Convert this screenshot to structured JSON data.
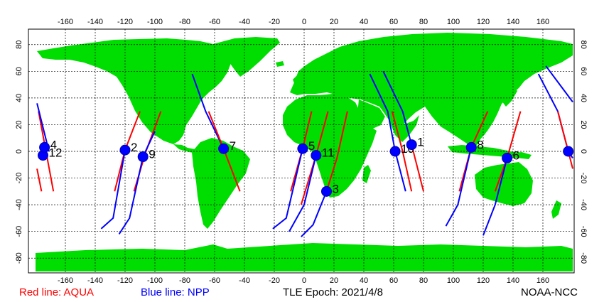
{
  "map": {
    "projection": "equirectangular",
    "lon_range": [
      -180,
      180
    ],
    "lat_range": [
      -90,
      90
    ],
    "lon_ticks": [
      -160,
      -140,
      -120,
      -100,
      -80,
      -60,
      -40,
      -20,
      0,
      20,
      40,
      60,
      80,
      100,
      120,
      140,
      160
    ],
    "lat_ticks": [
      80,
      60,
      40,
      20,
      0,
      -20,
      -40,
      -60,
      -80
    ],
    "grid": true,
    "colors": {
      "land": "#00dd00",
      "ocean": "#ffffff",
      "aqua": "#ff0000",
      "npp": "#0000ff",
      "marker": "#0000ff",
      "grid": "#000000"
    }
  },
  "legend": {
    "aqua": "Red line: AQUA",
    "npp": "Blue line: NPP",
    "epoch": "TLE Epoch: 2021/4/8",
    "credit": "NOAA-NCC"
  },
  "passes": [
    {
      "label": "12",
      "lon": -175,
      "lat": -3,
      "sat": "npp"
    },
    {
      "label": "4",
      "lon": -174,
      "lat": 3,
      "sat": "aqua"
    },
    {
      "label": "2",
      "lon": -120,
      "lat": 1,
      "sat": "aqua"
    },
    {
      "label": "9",
      "lon": -108,
      "lat": -4,
      "sat": "npp"
    },
    {
      "label": "7",
      "lon": -54,
      "lat": 2,
      "sat": "aqua"
    },
    {
      "label": "5",
      "lon": -1,
      "lat": 2,
      "sat": "aqua"
    },
    {
      "label": "11",
      "lon": 8,
      "lat": -3,
      "sat": "npp"
    },
    {
      "label": "3",
      "lon": 15,
      "lat": -30,
      "sat": "npp"
    },
    {
      "label": "10",
      "lon": 61,
      "lat": 0,
      "sat": "npp"
    },
    {
      "label": "1",
      "lon": 72,
      "lat": 5,
      "sat": "aqua"
    },
    {
      "label": "8",
      "lon": 112,
      "lat": 3,
      "sat": "aqua"
    },
    {
      "label": "6",
      "lon": 136,
      "lat": -5,
      "sat": "npp"
    },
    {
      "label": "",
      "lon": 177,
      "lat": 0,
      "sat": "aqua"
    }
  ],
  "tracks": [
    {
      "sat": "aqua",
      "points": [
        [
          -178,
          30
        ],
        [
          -168,
          -30
        ]
      ]
    },
    {
      "sat": "aqua",
      "points": [
        [
          -179,
          -13
        ],
        [
          -176,
          -30
        ]
      ]
    },
    {
      "sat": "npp",
      "points": [
        [
          -179,
          36
        ],
        [
          -171,
          0
        ]
      ]
    },
    {
      "sat": "aqua",
      "points": [
        [
          -110,
          30
        ],
        [
          -120,
          1
        ],
        [
          -127,
          -30
        ]
      ]
    },
    {
      "sat": "npp",
      "points": [
        [
          -120,
          1
        ],
        [
          -128,
          -50
        ],
        [
          -136,
          -58
        ]
      ]
    },
    {
      "sat": "aqua",
      "points": [
        [
          -96,
          30
        ],
        [
          -106,
          0
        ],
        [
          -114,
          -30
        ]
      ]
    },
    {
      "sat": "npp",
      "points": [
        [
          -100,
          15
        ],
        [
          -108,
          -4
        ],
        [
          -117,
          -50
        ],
        [
          -124,
          -62
        ]
      ]
    },
    {
      "sat": "npp",
      "points": [
        [
          -75,
          58
        ],
        [
          -66,
          30
        ],
        [
          -54,
          2
        ]
      ]
    },
    {
      "sat": "aqua",
      "points": [
        [
          -64,
          30
        ],
        [
          -54,
          2
        ],
        [
          -43,
          -30
        ]
      ]
    },
    {
      "sat": "aqua",
      "points": [
        [
          5,
          30
        ],
        [
          -1,
          2
        ],
        [
          -9,
          -30
        ]
      ]
    },
    {
      "sat": "npp",
      "points": [
        [
          -1,
          2
        ],
        [
          -12,
          -50
        ],
        [
          -21,
          -58
        ]
      ]
    },
    {
      "sat": "aqua",
      "points": [
        [
          16,
          30
        ],
        [
          8,
          -3
        ],
        [
          -2,
          -40
        ]
      ]
    },
    {
      "sat": "npp",
      "points": [
        [
          8,
          -3
        ],
        [
          0,
          -40
        ],
        [
          -10,
          -60
        ]
      ]
    },
    {
      "sat": "aqua",
      "points": [
        [
          29,
          30
        ],
        [
          22,
          -5
        ],
        [
          15,
          -30
        ]
      ]
    },
    {
      "sat": "npp",
      "points": [
        [
          15,
          -30
        ],
        [
          6,
          -55
        ],
        [
          -2,
          -64
        ]
      ]
    },
    {
      "sat": "npp",
      "points": [
        [
          44,
          58
        ],
        [
          56,
          30
        ],
        [
          61,
          0
        ],
        [
          68,
          -30
        ]
      ]
    },
    {
      "sat": "npp",
      "points": [
        [
          53,
          60
        ],
        [
          66,
          30
        ],
        [
          72,
          5
        ]
      ]
    },
    {
      "sat": "aqua",
      "points": [
        [
          59,
          30
        ],
        [
          66,
          0
        ],
        [
          72,
          -30
        ]
      ]
    },
    {
      "sat": "aqua",
      "points": [
        [
          72,
          5
        ],
        [
          80,
          -30
        ]
      ]
    },
    {
      "sat": "aqua",
      "points": [
        [
          123,
          30
        ],
        [
          112,
          3
        ],
        [
          104,
          -30
        ]
      ]
    },
    {
      "sat": "npp",
      "points": [
        [
          112,
          3
        ],
        [
          103,
          -40
        ],
        [
          95,
          -56
        ]
      ]
    },
    {
      "sat": "aqua",
      "points": [
        [
          145,
          30
        ],
        [
          136,
          -5
        ],
        [
          128,
          -30
        ]
      ]
    },
    {
      "sat": "npp",
      "points": [
        [
          136,
          -5
        ],
        [
          128,
          -40
        ],
        [
          120,
          -63
        ]
      ]
    },
    {
      "sat": "npp",
      "points": [
        [
          157,
          58
        ],
        [
          170,
          30
        ],
        [
          177,
          0
        ],
        [
          180,
          -5
        ]
      ]
    },
    {
      "sat": "npp",
      "points": [
        [
          162,
          64
        ],
        [
          174,
          46
        ],
        [
          180,
          37
        ]
      ]
    },
    {
      "sat": "aqua",
      "points": [
        [
          170,
          30
        ],
        [
          177,
          0
        ],
        [
          180,
          -13
        ]
      ]
    }
  ]
}
